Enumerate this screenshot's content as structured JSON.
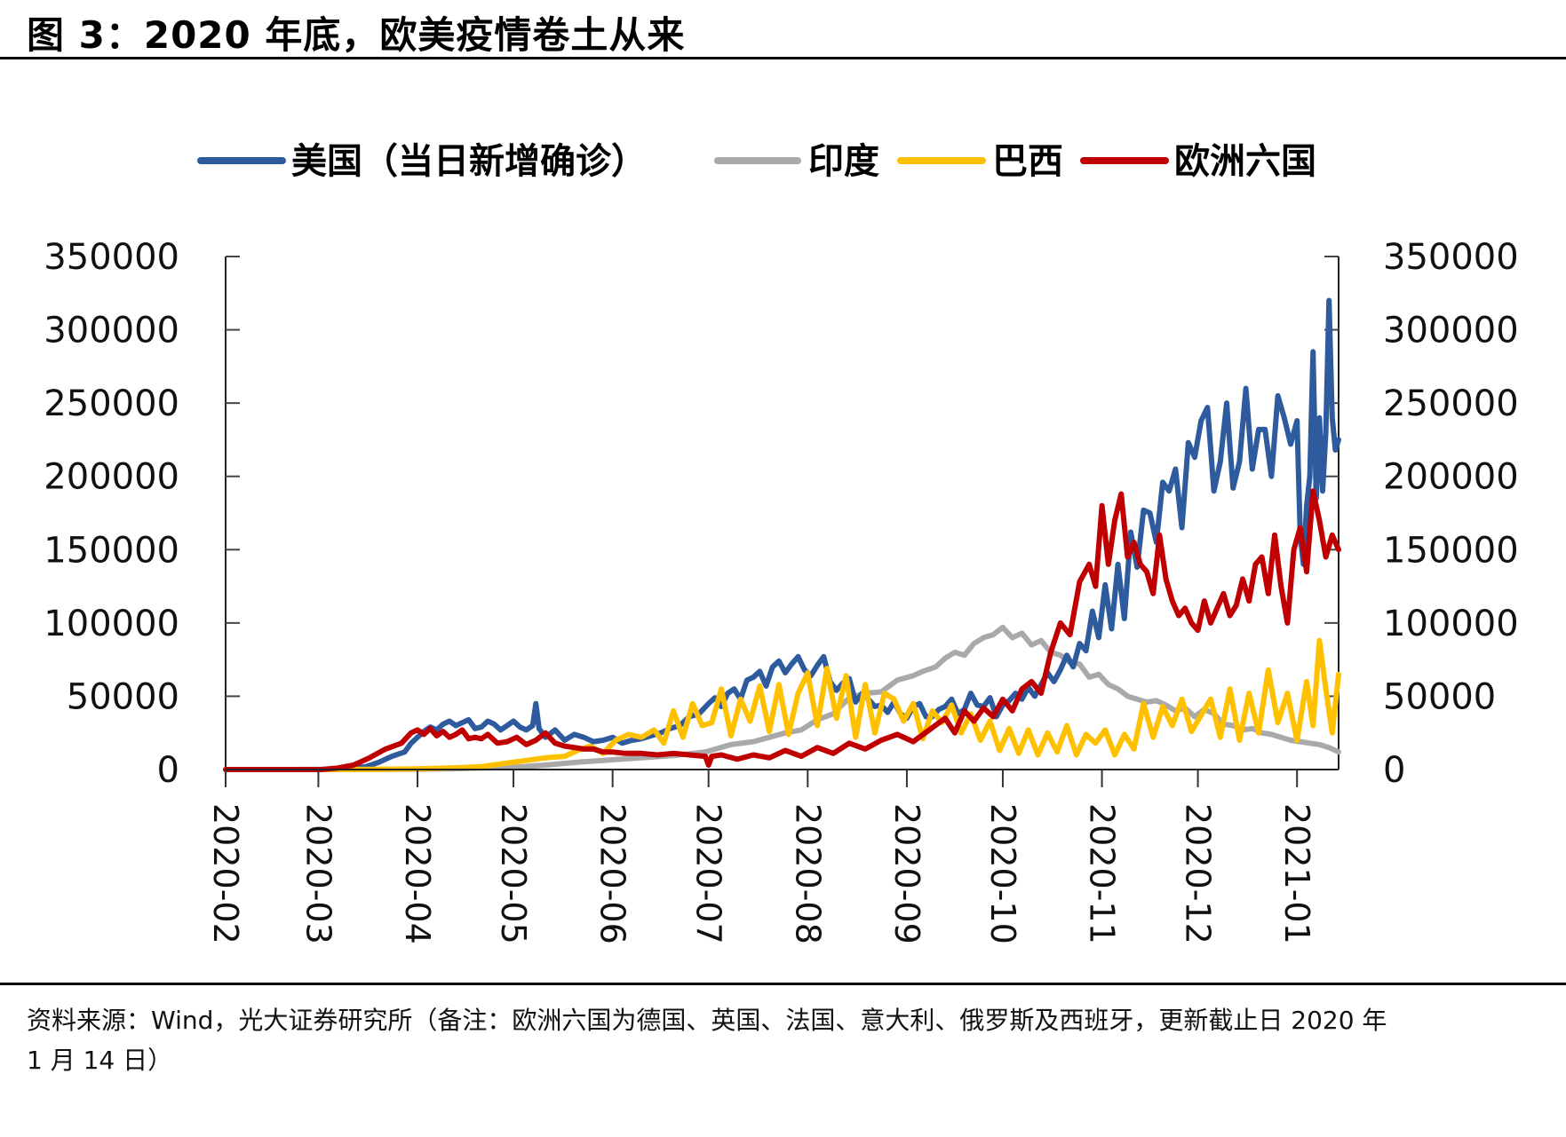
{
  "figure": {
    "title": "图 3：2020 年底，欧美疫情卷土从来",
    "source_line1": "资料来源：Wind，光大证券研究所（备注：欧洲六国为德国、英国、法国、意大利、俄罗斯及西班牙，更新截止日 2020 年",
    "source_line2": "1 月 14 日）"
  },
  "chart_data": {
    "type": "line",
    "title": "",
    "xlabel": "",
    "ylabel": "",
    "x_unit": "day offset from 2020-02-01",
    "x_range": [
      0,
      348
    ],
    "ylim": [
      0,
      350000
    ],
    "y_ticks": [
      0,
      50000,
      100000,
      150000,
      200000,
      250000,
      300000,
      350000
    ],
    "y_tick_labels": [
      "0",
      "50000",
      "100000",
      "150000",
      "200000",
      "250000",
      "300000",
      "350000"
    ],
    "y_right_ticks": [
      0,
      50000,
      100000,
      150000,
      200000,
      250000,
      300000,
      350000
    ],
    "y_right_tick_labels": [
      "0",
      "50000",
      "100000",
      "150000",
      "200000",
      "250000",
      "300000",
      "350000"
    ],
    "x_ticks": [
      0,
      29,
      60,
      90,
      121,
      151,
      182,
      213,
      243,
      274,
      304,
      335
    ],
    "x_tick_labels": [
      "2020-02",
      "2020-03",
      "2020-04",
      "2020-05",
      "2020-06",
      "2020-07",
      "2020-08",
      "2020-09",
      "2020-10",
      "2020-11",
      "2020-12",
      "2021-01"
    ],
    "grid": false,
    "legend_position": "top",
    "series": [
      {
        "name": "美国（当日新增确诊）",
        "color": "#2E5A9E",
        "x": [
          0,
          20,
          30,
          38,
          44,
          48,
          52,
          56,
          58,
          60,
          62,
          64,
          66,
          68,
          70,
          72,
          74,
          76,
          78,
          80,
          82,
          84,
          86,
          88,
          90,
          92,
          94,
          96,
          97,
          98,
          100,
          103,
          106,
          109,
          112,
          115,
          118,
          121,
          124,
          127,
          130,
          133,
          136,
          139,
          142,
          145,
          148,
          151,
          153,
          155,
          157,
          159,
          161,
          163,
          165,
          167,
          169,
          171,
          173,
          175,
          177,
          179,
          181,
          183,
          185,
          187,
          189,
          191,
          193,
          195,
          197,
          199,
          201,
          203,
          205,
          207,
          209,
          211,
          213,
          215,
          217,
          219,
          221,
          223,
          225,
          227,
          229,
          231,
          233,
          235,
          237,
          239,
          241,
          243,
          245,
          247,
          249,
          251,
          253,
          255,
          257,
          259,
          261,
          263,
          265,
          267,
          269,
          271,
          273,
          275,
          277,
          279,
          281,
          283,
          285,
          287,
          289,
          291,
          293,
          295,
          297,
          299,
          301,
          303,
          305,
          307,
          309,
          311,
          313,
          315,
          317,
          319,
          321,
          323,
          325,
          327,
          329,
          331,
          333,
          335,
          336,
          337,
          338,
          339,
          340,
          341,
          342,
          343,
          344,
          345,
          346,
          347,
          348
        ],
        "values": [
          0,
          0,
          50,
          300,
          2000,
          5000,
          9000,
          12000,
          18000,
          22000,
          26000,
          29000,
          27000,
          31000,
          33000,
          30000,
          32000,
          34000,
          28000,
          29000,
          33000,
          31000,
          27000,
          30000,
          33000,
          29000,
          27000,
          30000,
          45000,
          28000,
          22000,
          27000,
          20000,
          24000,
          22000,
          19000,
          20000,
          22000,
          18000,
          20000,
          21000,
          23000,
          25000,
          28000,
          30000,
          36000,
          38000,
          45000,
          49000,
          43000,
          52000,
          55000,
          48000,
          61000,
          63000,
          67000,
          57000,
          70000,
          74000,
          66000,
          72000,
          77000,
          68000,
          64000,
          71000,
          77000,
          60000,
          54000,
          59000,
          62000,
          46000,
          52000,
          48000,
          43000,
          44000,
          39000,
          46000,
          38000,
          35000,
          43000,
          45000,
          36000,
          36000,
          41000,
          43000,
          48000,
          38000,
          41000,
          52000,
          44000,
          43000,
          49000,
          36000,
          44000,
          47000,
          52000,
          48000,
          56000,
          50000,
          58000,
          66000,
          60000,
          68000,
          78000,
          70000,
          86000,
          81000,
          108000,
          90000,
          126000,
          96000,
          140000,
          103000,
          162000,
          138000,
          177000,
          175000,
          155000,
          196000,
          190000,
          205000,
          165000,
          223000,
          213000,
          238000,
          247000,
          190000,
          210000,
          250000,
          192000,
          210000,
          260000,
          205000,
          232000,
          232000,
          200000,
          255000,
          240000,
          222000,
          238000,
          160000,
          140000,
          180000,
          200000,
          285000,
          185000,
          240000,
          190000,
          230000,
          320000,
          240000,
          218000,
          225000
        ]
      },
      {
        "name": "印度",
        "color": "#A9A9A9",
        "x": [
          0,
          40,
          60,
          70,
          80,
          90,
          100,
          110,
          120,
          130,
          140,
          150,
          158,
          165,
          170,
          175,
          180,
          185,
          190,
          195,
          200,
          205,
          210,
          215,
          218,
          222,
          225,
          228,
          231,
          234,
          237,
          240,
          243,
          246,
          249,
          252,
          255,
          258,
          261,
          264,
          267,
          270,
          273,
          276,
          279,
          282,
          285,
          288,
          291,
          294,
          297,
          300,
          303,
          306,
          309,
          312,
          315,
          318,
          321,
          324,
          327,
          330,
          333,
          336,
          339,
          342,
          345,
          348
        ],
        "values": [
          0,
          0,
          100,
          400,
          1000,
          1500,
          3000,
          5000,
          6500,
          8000,
          9500,
          12000,
          17000,
          19000,
          22000,
          25000,
          27000,
          34000,
          38000,
          49000,
          52000,
          53000,
          61000,
          64000,
          67000,
          70000,
          76000,
          80000,
          78000,
          86000,
          90000,
          92000,
          97000,
          90000,
          93000,
          85000,
          88000,
          80000,
          78000,
          73000,
          72000,
          63000,
          65000,
          58000,
          55000,
          50000,
          48000,
          46000,
          47000,
          44000,
          40000,
          42000,
          36000,
          41000,
          38000,
          31000,
          30000,
          27000,
          28000,
          25000,
          24000,
          22000,
          20000,
          19000,
          18000,
          17000,
          15000,
          12000
        ]
      },
      {
        "name": "巴西",
        "color": "#FFC000",
        "x": [
          0,
          30,
          45,
          60,
          70,
          80,
          90,
          100,
          106,
          110,
          114,
          118,
          122,
          126,
          130,
          134,
          137,
          140,
          143,
          146,
          149,
          152,
          155,
          158,
          161,
          164,
          167,
          170,
          173,
          176,
          179,
          182,
          185,
          188,
          191,
          194,
          197,
          200,
          203,
          206,
          209,
          212,
          215,
          218,
          221,
          224,
          227,
          230,
          233,
          236,
          239,
          242,
          245,
          248,
          251,
          254,
          257,
          260,
          263,
          266,
          269,
          272,
          275,
          278,
          281,
          284,
          287,
          290,
          293,
          296,
          299,
          302,
          305,
          308,
          311,
          314,
          317,
          320,
          323,
          326,
          329,
          332,
          335,
          338,
          340,
          342,
          344,
          346,
          348
        ],
        "values": [
          0,
          0,
          100,
          500,
          1000,
          2000,
          5000,
          8000,
          9000,
          13000,
          16000,
          11000,
          20000,
          24000,
          22000,
          27000,
          18000,
          40000,
          22000,
          45000,
          30000,
          32000,
          55000,
          23000,
          48000,
          33000,
          57000,
          26000,
          58000,
          24000,
          52000,
          66000,
          30000,
          69000,
          35000,
          64000,
          22000,
          58000,
          25000,
          52000,
          48000,
          33000,
          45000,
          21000,
          40000,
          32000,
          44000,
          25000,
          38000,
          20000,
          33000,
          13000,
          28000,
          11000,
          27000,
          10000,
          25000,
          12000,
          30000,
          10000,
          24000,
          18000,
          27000,
          10000,
          24000,
          14000,
          45000,
          22000,
          43000,
          30000,
          48000,
          26000,
          37000,
          48000,
          22000,
          55000,
          20000,
          52000,
          25000,
          68000,
          32000,
          52000,
          20000,
          60000,
          30000,
          88000,
          55000,
          25000,
          65000
        ]
      },
      {
        "name": "欧洲六国",
        "color": "#C00000",
        "x": [
          0,
          30,
          35,
          40,
          45,
          50,
          55,
          58,
          60,
          62,
          64,
          66,
          68,
          70,
          72,
          74,
          76,
          78,
          80,
          82,
          85,
          88,
          91,
          94,
          97,
          100,
          103,
          106,
          109,
          112,
          115,
          118,
          121,
          125,
          130,
          135,
          140,
          145,
          150,
          151,
          152,
          155,
          160,
          165,
          170,
          175,
          180,
          185,
          190,
          195,
          200,
          205,
          210,
          215,
          220,
          225,
          228,
          231,
          234,
          237,
          240,
          243,
          246,
          249,
          252,
          255,
          258,
          261,
          264,
          267,
          270,
          272,
          274,
          276,
          278,
          280,
          282,
          284,
          286,
          288,
          290,
          292,
          294,
          296,
          298,
          300,
          302,
          304,
          306,
          308,
          310,
          312,
          314,
          316,
          318,
          320,
          322,
          324,
          326,
          328,
          330,
          332,
          334,
          336,
          338,
          340,
          342,
          344,
          346,
          348
        ],
        "values": [
          0,
          0,
          1000,
          3000,
          8000,
          14000,
          18000,
          25000,
          27000,
          24000,
          28000,
          23000,
          26000,
          22000,
          24000,
          27000,
          21000,
          22000,
          21000,
          24000,
          18000,
          19000,
          22000,
          17000,
          20000,
          25000,
          18000,
          16000,
          15000,
          14000,
          14000,
          12000,
          12000,
          11000,
          11000,
          10000,
          11000,
          10000,
          9000,
          3000,
          9000,
          10000,
          7000,
          10000,
          8000,
          13000,
          9000,
          15000,
          11000,
          18000,
          14000,
          20000,
          24000,
          19000,
          27000,
          35000,
          25000,
          40000,
          33000,
          42000,
          36000,
          48000,
          40000,
          55000,
          60000,
          52000,
          80000,
          100000,
          92000,
          128000,
          140000,
          125000,
          180000,
          140000,
          170000,
          188000,
          145000,
          155000,
          140000,
          135000,
          120000,
          160000,
          130000,
          115000,
          105000,
          110000,
          100000,
          95000,
          115000,
          100000,
          110000,
          120000,
          105000,
          112000,
          130000,
          115000,
          140000,
          145000,
          120000,
          160000,
          125000,
          100000,
          150000,
          165000,
          135000,
          190000,
          170000,
          145000,
          160000,
          150000
        ]
      }
    ]
  }
}
